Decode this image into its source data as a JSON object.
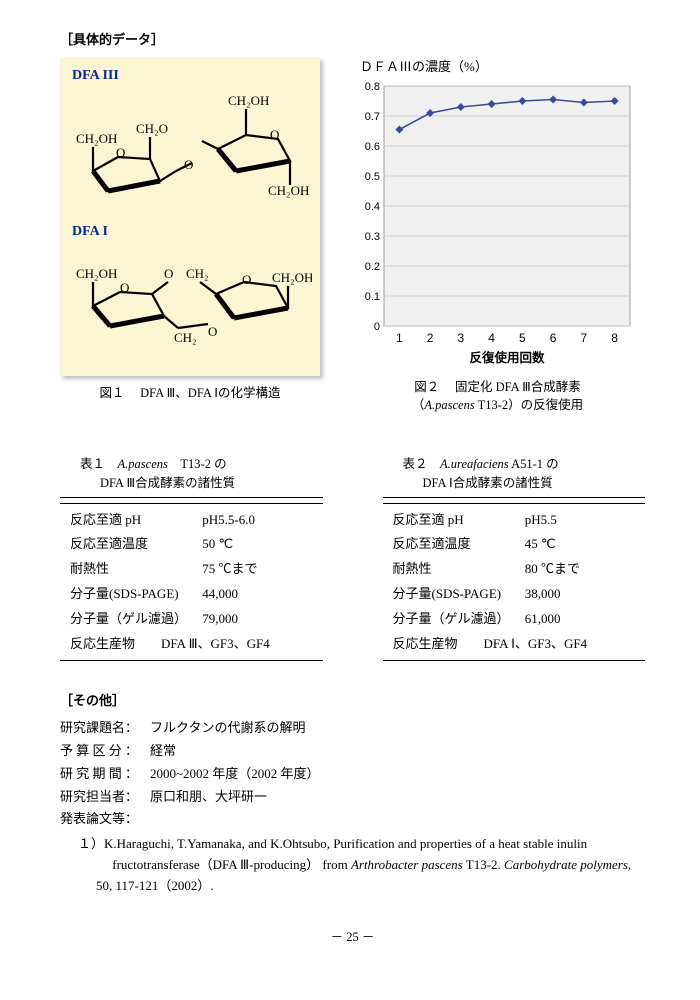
{
  "header": {
    "section": "［具体的データ］"
  },
  "structure": {
    "bg_color": "#faf6d4",
    "label_color": "#0a2a8a",
    "dfa3": {
      "title": "DFA III",
      "labels": [
        "CH₂OH",
        "CH₂OH",
        "CH₂O",
        "O",
        "O",
        "CH₂OH"
      ]
    },
    "dfa1": {
      "title": "DFA I",
      "labels": [
        "CH₂OH",
        "O",
        "CH₂",
        "CH₂OH",
        "O",
        "CH₂",
        "O"
      ]
    },
    "caption_prefix": "図１",
    "caption_text": "DFA Ⅲ、DFA Ⅰの化学構造"
  },
  "chart": {
    "type": "line",
    "title": "ＤＦＡⅢの濃度（%）",
    "x_values": [
      1,
      2,
      3,
      4,
      5,
      6,
      7,
      8
    ],
    "y_values": [
      0.655,
      0.71,
      0.73,
      0.74,
      0.75,
      0.755,
      0.745,
      0.75
    ],
    "ylim": [
      0,
      0.8
    ],
    "ytick_labels": [
      "0",
      "0.1",
      "0.2",
      "0.3",
      "0.4",
      "0.5",
      "0.6",
      "0.7",
      "0.8"
    ],
    "xlabel": "反復使用回数",
    "line_color": "#3a4a9a",
    "marker": "diamond",
    "grid_color": "#c8c8c8",
    "bg_color": "#f0f0f0",
    "caption_prefix": "図２",
    "caption_line1": "固定化 DFA Ⅲ合成酵素",
    "caption_line2_pre": "（",
    "caption_line2_italic": "A.pascens",
    "caption_line2_post": " T13-2）の反復使用"
  },
  "table1": {
    "caption_prefix": "表１",
    "caption_species": "A.pascens",
    "caption_strain": "T13-2 の",
    "caption_line2": "DFA Ⅲ合成酵素の諸性質",
    "rows": [
      {
        "k": "反応至適 pH",
        "v": "pH5.5-6.0"
      },
      {
        "k": "反応至適温度",
        "v": "50 ℃"
      },
      {
        "k": "耐熱性",
        "v": "75 ℃まで"
      },
      {
        "k": "分子量(SDS-PAGE)",
        "v": "44,000"
      },
      {
        "k": "分子量（ゲル濾過）",
        "v": "79,000"
      }
    ],
    "last_row": {
      "k": "反応生産物",
      "v": "DFA Ⅲ、GF3、GF4"
    }
  },
  "table2": {
    "caption_prefix": "表２",
    "caption_species": "A.ureafaciens",
    "caption_strain": "A51-1 の",
    "caption_line2": "DFA Ⅰ合成酵素の諸性質",
    "rows": [
      {
        "k": "反応至適 pH",
        "v": "pH5.5"
      },
      {
        "k": "反応至適温度",
        "v": "45 ℃"
      },
      {
        "k": "耐熱性",
        "v": "80 ℃まで"
      },
      {
        "k": "分子量(SDS-PAGE)",
        "v": "38,000"
      },
      {
        "k": "分子量（ゲル濾過）",
        "v": "61,000"
      }
    ],
    "last_row": {
      "k": "反応生産物",
      "v": "DFA Ⅰ、GF3、GF4"
    }
  },
  "other": {
    "header": "［その他］",
    "items": [
      {
        "label": "研究課題名：",
        "value": "フルクタンの代謝系の解明"
      },
      {
        "label": "予 算 区 分 ：",
        "value": "経常"
      },
      {
        "label": "研 究 期 間 ：",
        "value": "2000~2002 年度（2002 年度）"
      },
      {
        "label": "研究担当者：",
        "value": "原口和朋、大坪研一"
      },
      {
        "label": "発表論文等：",
        "value": ""
      }
    ],
    "ref_num": "１）",
    "ref_authors": "K.Haraguchi, T.Yamanaka, and K.Ohtsubo, Purification and properties of a heat stable inulin ",
    "ref_line2a": "fructotransferase（DFA Ⅲ-producing） from ",
    "ref_italic1": "Arthrobacter pascens",
    "ref_mid": " T13-2. ",
    "ref_italic2": "Carbohydrate polymers",
    "ref_tail": ", 50, 117-121（2002）."
  },
  "page_number": "－ 25 －"
}
